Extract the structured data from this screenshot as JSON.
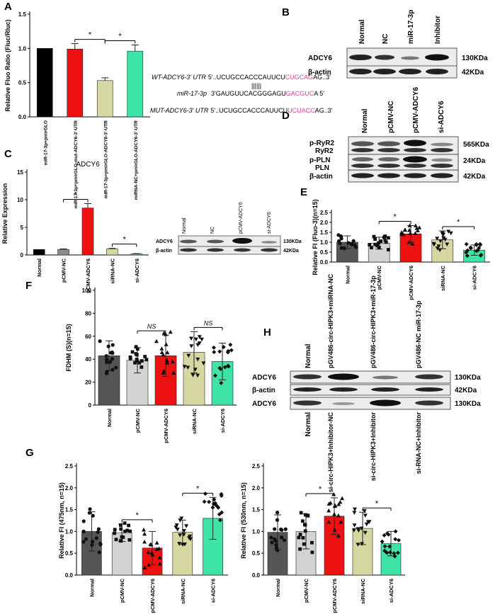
{
  "panels": {
    "A": "A",
    "B": "B",
    "C": "C",
    "D": "D",
    "E": "E",
    "F": "F",
    "G": "G",
    "H": "H"
  },
  "colors": {
    "black": "#000000",
    "dark_gray": "#555555",
    "mid_gray": "#8c8c8c",
    "light_gray": "#d3d3d3",
    "red": "#ee1111",
    "khaki": "#d7d7a1",
    "teal": "#3ee3a6",
    "magenta": "#e0449a"
  },
  "panel_a_sequences": {
    "wt_label": "WT-ADCY6-3' UTR",
    "wt_pre": "5'..UCUGCCACCCAUUCU",
    "wt_site": "CUGCAG",
    "wt_post": "AG..3'",
    "pairing": "||||||",
    "mirna_label": "miR-17-3p",
    "mirna_pre": "3'GAUGUUCACGGGAGU",
    "mirna_site": "GACGUC",
    "mirna_post": "A 5'",
    "mut_label": "MUT-ADCY6-3' UTR",
    "mut_pre": "5'..UCUGCCACCCAUUCU",
    "mut_site": "UCUACC",
    "mut_post": "AG..3'"
  },
  "blot_b": {
    "lanes": [
      "Normal",
      "NC",
      "miR-17-3p",
      "Inhibitor"
    ],
    "rows": [
      {
        "protein": "ADCY6",
        "size": "130KDa"
      },
      {
        "protein": "β-actin",
        "size": "42KDa"
      }
    ]
  },
  "blot_c": {
    "lanes": [
      "Normal",
      "NC",
      "pCMV-ADCY6",
      "si-ADCY6"
    ],
    "rows": [
      {
        "protein": "ADCY6",
        "size": "130KDa"
      },
      {
        "protein": "β-actin",
        "size": "42KDa"
      }
    ]
  },
  "blot_d": {
    "lanes": [
      "Normal",
      "pCMV-NC",
      "pCMV-ADCY6",
      "si-ADCY6"
    ],
    "rows": [
      {
        "protein": "p-RyR2",
        "size": "565KDa"
      },
      {
        "protein": "RyR2",
        "size": ""
      },
      {
        "protein": "p-PLN",
        "size": "24KDa"
      },
      {
        "protein": "PLN",
        "size": ""
      },
      {
        "protein": "β-actin",
        "size": "42KDa"
      }
    ]
  },
  "blot_h": {
    "lanes_top": [
      "Normal",
      "pGV486-circ-HIPK3+miRNA-NC",
      "pGV486-circ-HIPK3+miR-17-3p",
      "pGV486-NC miR-17-3p"
    ],
    "lanes_bottom": [
      "Normal",
      "si-circ-HIPK3+Inhibitor-NC",
      "si-circ-HIPK3+Inhibitor",
      "si-RNA-NC+Inhibitor"
    ],
    "rows": [
      {
        "protein": "ADCY6",
        "size": "130KDa"
      },
      {
        "protein": "β-actin",
        "size": "42KDa"
      },
      {
        "protein": "ADCY6",
        "size": "130KDa"
      }
    ]
  },
  "chart_data": [
    {
      "id": "A",
      "type": "bar",
      "categories": [
        "miR-17-3p+pmirGLO",
        "miR-17-3p+pmirGLO-mut-ADCY6-3'-UTR",
        "miR-17-3p+pmirGLO-ADCY6-3'-UTR",
        "miRNA-NC+pmirGLO-ADCY6-3'-UTR"
      ],
      "values": [
        1.0,
        0.99,
        0.53,
        0.96
      ],
      "errors": [
        0.0,
        0.08,
        0.04,
        0.09
      ],
      "colors": [
        "#000000",
        "#ee1111",
        "#d7d7a1",
        "#3ee3a6"
      ],
      "ylabel": "Relative Fluo Ratio (Fluc/Rluc)",
      "ylim": [
        0,
        1.5
      ],
      "yticks": [
        "0.0",
        "0.5",
        "1.0",
        "1.5"
      ],
      "significance": [
        {
          "from": 1,
          "to": 2,
          "label": "*"
        },
        {
          "from": 2,
          "to": 3,
          "label": "*"
        }
      ]
    },
    {
      "id": "C",
      "type": "bar",
      "title": "ADCY6",
      "categories": [
        "Normal",
        "pCMV-NC",
        "pCMV-ADCY6",
        "siRNA-NC",
        "si-ADCY6"
      ],
      "values": [
        1.0,
        1.0,
        8.5,
        1.1,
        0.2
      ],
      "errors": [
        0.0,
        0.1,
        0.8,
        0.1,
        0.05
      ],
      "colors": [
        "#000000",
        "#8c8c8c",
        "#ee1111",
        "#d7d7a1",
        "#3ee3a6"
      ],
      "ylabel": "Relative Expression",
      "ylim": [
        0,
        15
      ],
      "yticks": [
        "0",
        "5",
        "10",
        "15"
      ],
      "significance": [
        {
          "from": 1,
          "to": 2,
          "label": "*"
        },
        {
          "from": 3,
          "to": 4,
          "label": "*"
        }
      ]
    },
    {
      "id": "E",
      "type": "bar",
      "categories": [
        "Normal",
        "pCMV-NC",
        "pCMV-ADCY6",
        "siRNA-NC",
        "si-ADCY6"
      ],
      "values": [
        1.0,
        0.95,
        1.42,
        1.12,
        0.6
      ],
      "errors": [
        0.32,
        0.3,
        0.42,
        0.45,
        0.26
      ],
      "colors": [
        "#555555",
        "#d3d3d3",
        "#ee1111",
        "#d7d7a1",
        "#3ee3a6"
      ],
      "ylabel": "Relative FI (Fluo-3)(n=15)",
      "ylim": [
        0,
        2.5
      ],
      "yticks": [
        "0.0",
        "0.5",
        "1.0",
        "1.5",
        "2.0",
        "2.5"
      ],
      "significance": [
        {
          "from": 1,
          "to": 2,
          "label": "*"
        },
        {
          "from": 3,
          "to": 4,
          "label": "*"
        }
      ]
    },
    {
      "id": "F",
      "type": "bar",
      "categories": [
        "Normal",
        "pCMV-NC",
        "pCMV-ADCY6",
        "siRNA-NC",
        "si-ADCY6"
      ],
      "values": [
        43,
        39,
        43,
        46,
        38
      ],
      "errors": [
        13,
        11,
        18,
        18,
        16
      ],
      "colors": [
        "#555555",
        "#d3d3d3",
        "#ee1111",
        "#d7d7a1",
        "#3ee3a6"
      ],
      "ylabel": "FDHM (S)(n=15)",
      "ylim": [
        0,
        100
      ],
      "yticks": [
        "0",
        "20",
        "40",
        "60",
        "80",
        "100"
      ],
      "significance": [
        {
          "from": 1,
          "to": 2,
          "label": "NS"
        },
        {
          "from": 3,
          "to": 4,
          "label": "NS"
        }
      ]
    },
    {
      "id": "G1",
      "type": "bar",
      "categories": [
        "Normal",
        "pCMV-NC",
        "pCMV-ADCY6",
        "siRNA-NC",
        "si-ADCY6"
      ],
      "values": [
        1.0,
        0.97,
        0.62,
        0.98,
        1.3
      ],
      "errors": [
        0.45,
        0.2,
        0.38,
        0.28,
        0.48
      ],
      "colors": [
        "#555555",
        "#d3d3d3",
        "#ee1111",
        "#d7d7a1",
        "#3ee3a6"
      ],
      "ylabel": "Relative FI (475nm, n=15)",
      "ylim": [
        0,
        2.5
      ],
      "yticks": [
        "0.0",
        "0.5",
        "1.0",
        "1.5",
        "2.0",
        "2.5"
      ],
      "significance": [
        {
          "from": 1,
          "to": 2,
          "label": "*"
        },
        {
          "from": 3,
          "to": 4,
          "label": "*"
        }
      ]
    },
    {
      "id": "G2",
      "type": "bar",
      "categories": [
        "Normal",
        "pCMV-NC",
        "pCMV-ADCY6",
        "siRNA-NC",
        "si-ADCY6"
      ],
      "values": [
        0.98,
        1.0,
        1.35,
        1.07,
        0.72
      ],
      "errors": [
        0.4,
        0.4,
        0.42,
        0.37,
        0.28
      ],
      "colors": [
        "#555555",
        "#d3d3d3",
        "#ee1111",
        "#d7d7a1",
        "#3ee3a6"
      ],
      "ylabel": "Relative FI (530nm, n=15)",
      "ylim": [
        0,
        2.5
      ],
      "yticks": [
        "0.0",
        "0.5",
        "1.0",
        "1.5",
        "2.0",
        "2.5"
      ],
      "significance": [
        {
          "from": 1,
          "to": 2,
          "label": "*"
        },
        {
          "from": 3,
          "to": 4,
          "label": "*"
        }
      ]
    }
  ]
}
